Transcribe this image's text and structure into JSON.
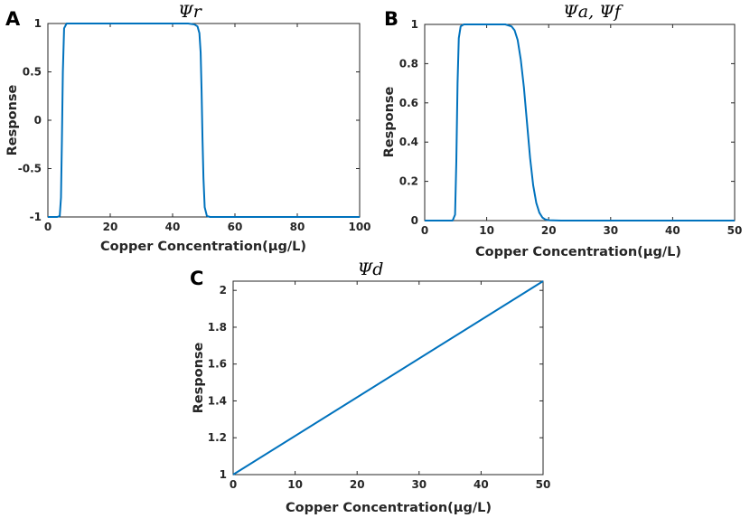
{
  "colors": {
    "line": "#0072BD",
    "axis": "#262626",
    "background": "#ffffff"
  },
  "panels": [
    {
      "letter": "A",
      "title": "Ψr"
    },
    {
      "letter": "B",
      "title": "Ψa, Ψf"
    },
    {
      "letter": "C",
      "title": "Ψd"
    }
  ],
  "chart_data": [
    {
      "type": "line",
      "title": "Ψr",
      "xlabel": "Copper Concentration(μg/L)",
      "ylabel": "Response",
      "xlim": [
        0,
        100
      ],
      "ylim": [
        -1,
        1
      ],
      "xticks": [
        0,
        20,
        40,
        60,
        80,
        100
      ],
      "xtick_labels": [
        "0",
        "20",
        "40",
        "60",
        "80",
        "100"
      ],
      "yticks": [
        -1,
        -0.5,
        0,
        0.5,
        1
      ],
      "ytick_labels": [
        "-1",
        "-0.5",
        "0",
        "0.5",
        "1"
      ],
      "grid": false,
      "series": [
        {
          "x": [
            0,
            3,
            3.8,
            4.2,
            4.5,
            4.8,
            5.2,
            6,
            10,
            20,
            30,
            40,
            45,
            47,
            48,
            48.6,
            49,
            49.3,
            49.6,
            49.9,
            50.3,
            51,
            52,
            60,
            80,
            100
          ],
          "y": [
            -1,
            -1,
            -0.99,
            -0.8,
            -0.2,
            0.5,
            0.95,
            1,
            1,
            1,
            1,
            1,
            1,
            0.99,
            0.97,
            0.9,
            0.7,
            0.3,
            -0.2,
            -0.6,
            -0.9,
            -0.99,
            -1,
            -1,
            -1,
            -1
          ]
        }
      ]
    },
    {
      "type": "line",
      "title": "Ψa, Ψf",
      "xlabel": "Copper Concentration(μg/L)",
      "ylabel": "Response",
      "xlim": [
        0,
        50
      ],
      "ylim": [
        0,
        1
      ],
      "xticks": [
        0,
        10,
        20,
        30,
        40,
        50
      ],
      "xtick_labels": [
        "0",
        "10",
        "20",
        "30",
        "40",
        "50"
      ],
      "yticks": [
        0,
        0.2,
        0.4,
        0.6,
        0.8,
        1
      ],
      "ytick_labels": [
        "0",
        "0.2",
        "0.4",
        "0.6",
        "0.8",
        "1"
      ],
      "grid": false,
      "series": [
        {
          "x": [
            0,
            4.5,
            4.9,
            5.1,
            5.3,
            5.5,
            5.8,
            6.3,
            8,
            10,
            13,
            14,
            14.5,
            15,
            15.5,
            16,
            16.5,
            17,
            17.5,
            18,
            18.5,
            19,
            19.5,
            20,
            22,
            30,
            40,
            50
          ],
          "y": [
            0,
            0,
            0.03,
            0.3,
            0.7,
            0.93,
            0.99,
            1,
            1,
            1,
            1,
            0.99,
            0.97,
            0.92,
            0.82,
            0.68,
            0.5,
            0.32,
            0.18,
            0.09,
            0.04,
            0.015,
            0.005,
            0.002,
            0,
            0,
            0,
            0
          ]
        }
      ]
    },
    {
      "type": "line",
      "title": "Ψd",
      "xlabel": "Copper Concentration(μg/L)",
      "ylabel": "Response",
      "xlim": [
        0,
        50
      ],
      "ylim": [
        1,
        2.05
      ],
      "xticks": [
        0,
        10,
        20,
        30,
        40,
        50
      ],
      "xtick_labels": [
        "0",
        "10",
        "20",
        "30",
        "40",
        "50"
      ],
      "yticks": [
        1,
        1.2,
        1.4,
        1.6,
        1.8,
        2
      ],
      "ytick_labels": [
        "1",
        "1.2",
        "1.4",
        "1.6",
        "1.8",
        "2"
      ],
      "grid": false,
      "series": [
        {
          "x": [
            0,
            50
          ],
          "y": [
            1,
            2.05
          ]
        }
      ]
    }
  ]
}
